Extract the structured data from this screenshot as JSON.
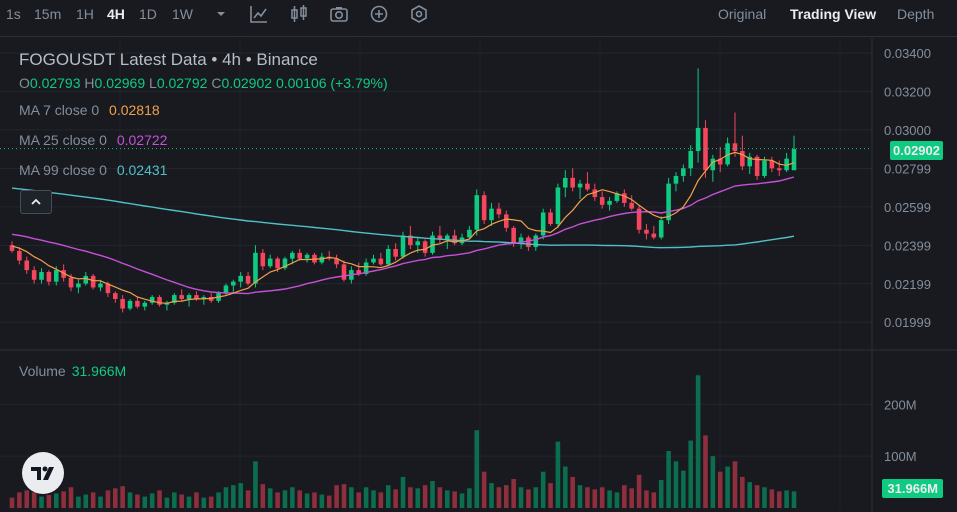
{
  "toolbar": {
    "timeframes": [
      "1s",
      "15m",
      "1H",
      "4H",
      "1D",
      "1W"
    ],
    "active_timeframe": "4H",
    "tool_icons": [
      "chevron-down-icon",
      "line-chart-icon",
      "candle-settings-icon",
      "camera-icon",
      "plus-circle-icon",
      "hexagon-settings-icon"
    ],
    "views": [
      "Original",
      "Trading View",
      "Depth"
    ],
    "active_view": "Trading View"
  },
  "legend": {
    "title": "FOGOUSDT Latest Data • 4h • Binance",
    "open_label": "O",
    "open": "0.02793",
    "high_label": "H",
    "high": "0.02969",
    "low_label": "L",
    "low": "0.02792",
    "close_label": "C",
    "close": "0.02902",
    "change": "0.00106 (+3.79%)",
    "ma7_label": "MA 7 close 0",
    "ma7_value": "0.02818",
    "ma25_label": "MA 25 close 0",
    "ma25_value": "0.02722",
    "ma99_label": "MA 99 close 0",
    "ma99_value": "0.02431"
  },
  "volume": {
    "label": "Volume",
    "value": "31.966M",
    "tag": "31.966M"
  },
  "price_tag": "0.02902",
  "colors": {
    "up": "#0ecb81",
    "down": "#f6465d",
    "ma7": "#f0a04b",
    "ma25": "#c650d6",
    "ma99": "#4fc1c6",
    "bg": "#181a20"
  },
  "chart_data": {
    "type": "candlestick",
    "price_axis_ticks": [
      "0.03400",
      "0.03200",
      "0.03000",
      "0.02799",
      "0.02599",
      "0.02399",
      "0.02199",
      "0.01999"
    ],
    "volume_axis_ticks": [
      "200M",
      "100M"
    ],
    "ylim": [
      0.019,
      0.0355
    ],
    "candles": [
      [
        0.024,
        0.0242,
        0.0236,
        0.0237,
        20
      ],
      [
        0.0237,
        0.0239,
        0.023,
        0.0232,
        30
      ],
      [
        0.0232,
        0.0234,
        0.0225,
        0.0227,
        34
      ],
      [
        0.0227,
        0.0229,
        0.022,
        0.0222,
        30
      ],
      [
        0.0222,
        0.0228,
        0.022,
        0.0226,
        22
      ],
      [
        0.0226,
        0.0227,
        0.0219,
        0.0221,
        25
      ],
      [
        0.0221,
        0.0229,
        0.0219,
        0.0227,
        28
      ],
      [
        0.0227,
        0.023,
        0.0221,
        0.0223,
        32
      ],
      [
        0.0223,
        0.0225,
        0.0216,
        0.0218,
        40
      ],
      [
        0.0218,
        0.0222,
        0.0215,
        0.022,
        22
      ],
      [
        0.022,
        0.0226,
        0.0219,
        0.0224,
        26
      ],
      [
        0.0224,
        0.0225,
        0.0217,
        0.0218,
        30
      ],
      [
        0.0218,
        0.0222,
        0.0216,
        0.022,
        22
      ],
      [
        0.022,
        0.0221,
        0.0213,
        0.0215,
        34
      ],
      [
        0.0215,
        0.0216,
        0.021,
        0.0212,
        38
      ],
      [
        0.0212,
        0.0214,
        0.0205,
        0.0207,
        42
      ],
      [
        0.0207,
        0.0212,
        0.0206,
        0.0211,
        30
      ],
      [
        0.0211,
        0.0213,
        0.0207,
        0.0208,
        26
      ],
      [
        0.0208,
        0.0211,
        0.0206,
        0.021,
        22
      ],
      [
        0.021,
        0.0214,
        0.0209,
        0.0213,
        28
      ],
      [
        0.0213,
        0.0214,
        0.0208,
        0.0209,
        34
      ],
      [
        0.0209,
        0.0211,
        0.0206,
        0.021,
        20
      ],
      [
        0.021,
        0.0215,
        0.0209,
        0.0214,
        30
      ],
      [
        0.0214,
        0.0217,
        0.0211,
        0.0212,
        26
      ],
      [
        0.0212,
        0.0215,
        0.0208,
        0.0214,
        22
      ],
      [
        0.0214,
        0.0216,
        0.0211,
        0.0212,
        30
      ],
      [
        0.0212,
        0.0214,
        0.0209,
        0.0213,
        20
      ],
      [
        0.0213,
        0.0215,
        0.021,
        0.0211,
        22
      ],
      [
        0.0211,
        0.0216,
        0.021,
        0.0215,
        30
      ],
      [
        0.0215,
        0.022,
        0.0214,
        0.0219,
        40
      ],
      [
        0.0219,
        0.0222,
        0.0215,
        0.0221,
        44
      ],
      [
        0.0221,
        0.0226,
        0.0218,
        0.0224,
        48
      ],
      [
        0.0224,
        0.0226,
        0.0219,
        0.022,
        34
      ],
      [
        0.022,
        0.024,
        0.0218,
        0.0236,
        90
      ],
      [
        0.0236,
        0.0238,
        0.0227,
        0.0229,
        46
      ],
      [
        0.0229,
        0.0235,
        0.0228,
        0.0233,
        38
      ],
      [
        0.0233,
        0.0234,
        0.0226,
        0.0228,
        30
      ],
      [
        0.0228,
        0.0234,
        0.0227,
        0.0233,
        34
      ],
      [
        0.0233,
        0.0237,
        0.023,
        0.0236,
        40
      ],
      [
        0.0236,
        0.0238,
        0.0232,
        0.0233,
        34
      ],
      [
        0.0233,
        0.0236,
        0.0231,
        0.0235,
        28
      ],
      [
        0.0235,
        0.0236,
        0.023,
        0.0231,
        30
      ],
      [
        0.0231,
        0.0236,
        0.023,
        0.0234,
        26
      ],
      [
        0.0234,
        0.0237,
        0.0232,
        0.0233,
        24
      ],
      [
        0.0233,
        0.0235,
        0.0228,
        0.023,
        44
      ],
      [
        0.023,
        0.0232,
        0.0221,
        0.0222,
        46
      ],
      [
        0.0222,
        0.0229,
        0.022,
        0.0227,
        40
      ],
      [
        0.0227,
        0.0231,
        0.0224,
        0.0225,
        30
      ],
      [
        0.0225,
        0.0233,
        0.0224,
        0.0231,
        40
      ],
      [
        0.0231,
        0.0235,
        0.023,
        0.0233,
        34
      ],
      [
        0.0233,
        0.0236,
        0.0229,
        0.023,
        30
      ],
      [
        0.023,
        0.024,
        0.0229,
        0.0238,
        44
      ],
      [
        0.0238,
        0.0241,
        0.0232,
        0.0234,
        36
      ],
      [
        0.0234,
        0.0247,
        0.0233,
        0.0245,
        60
      ],
      [
        0.0245,
        0.025,
        0.0238,
        0.024,
        40
      ],
      [
        0.024,
        0.0244,
        0.0236,
        0.0242,
        38
      ],
      [
        0.0242,
        0.0243,
        0.0234,
        0.0236,
        44
      ],
      [
        0.0236,
        0.0247,
        0.0235,
        0.0245,
        52
      ],
      [
        0.0245,
        0.025,
        0.0241,
        0.0243,
        40
      ],
      [
        0.0243,
        0.0246,
        0.0238,
        0.0245,
        34
      ],
      [
        0.0245,
        0.0248,
        0.024,
        0.0241,
        32
      ],
      [
        0.0241,
        0.0246,
        0.024,
        0.0244,
        28
      ],
      [
        0.0244,
        0.025,
        0.0243,
        0.0248,
        38
      ],
      [
        0.0248,
        0.0269,
        0.0245,
        0.0266,
        150
      ],
      [
        0.0266,
        0.0268,
        0.0251,
        0.0253,
        70
      ],
      [
        0.0253,
        0.0262,
        0.025,
        0.0259,
        48
      ],
      [
        0.0259,
        0.0262,
        0.0254,
        0.0256,
        40
      ],
      [
        0.0256,
        0.0258,
        0.0247,
        0.0249,
        44
      ],
      [
        0.0249,
        0.025,
        0.0239,
        0.0241,
        56
      ],
      [
        0.0241,
        0.0246,
        0.0238,
        0.0244,
        40
      ],
      [
        0.0244,
        0.0245,
        0.0237,
        0.0239,
        36
      ],
      [
        0.0239,
        0.0246,
        0.0237,
        0.0245,
        40
      ],
      [
        0.0245,
        0.0259,
        0.0243,
        0.0257,
        70
      ],
      [
        0.0257,
        0.0259,
        0.025,
        0.0251,
        48
      ],
      [
        0.0251,
        0.0272,
        0.0249,
        0.027,
        128
      ],
      [
        0.027,
        0.0279,
        0.0265,
        0.0275,
        80
      ],
      [
        0.0275,
        0.028,
        0.0268,
        0.027,
        60
      ],
      [
        0.027,
        0.0274,
        0.0264,
        0.0272,
        44
      ],
      [
        0.0272,
        0.0278,
        0.0268,
        0.0269,
        40
      ],
      [
        0.0269,
        0.0272,
        0.0263,
        0.0265,
        36
      ],
      [
        0.0265,
        0.0268,
        0.0259,
        0.0261,
        40
      ],
      [
        0.0261,
        0.0265,
        0.0258,
        0.0263,
        34
      ],
      [
        0.0263,
        0.0268,
        0.0262,
        0.0267,
        30
      ],
      [
        0.0267,
        0.0269,
        0.026,
        0.0262,
        44
      ],
      [
        0.0262,
        0.0266,
        0.0258,
        0.0259,
        38
      ],
      [
        0.0259,
        0.0261,
        0.0246,
        0.0248,
        64
      ],
      [
        0.0248,
        0.0251,
        0.0243,
        0.0246,
        34
      ],
      [
        0.0246,
        0.025,
        0.0243,
        0.0244,
        30
      ],
      [
        0.0244,
        0.0255,
        0.0243,
        0.0253,
        54
      ],
      [
        0.0253,
        0.0275,
        0.0251,
        0.0272,
        110
      ],
      [
        0.0272,
        0.0278,
        0.0268,
        0.0276,
        90
      ],
      [
        0.0276,
        0.0282,
        0.0273,
        0.028,
        72
      ],
      [
        0.028,
        0.0292,
        0.0276,
        0.0289,
        130
      ],
      [
        0.0289,
        0.0332,
        0.0283,
        0.0301,
        256
      ],
      [
        0.0301,
        0.0305,
        0.0275,
        0.0279,
        140
      ],
      [
        0.0279,
        0.0287,
        0.0273,
        0.0285,
        100
      ],
      [
        0.0285,
        0.0291,
        0.0278,
        0.0282,
        70
      ],
      [
        0.0282,
        0.0296,
        0.0281,
        0.0293,
        80
      ],
      [
        0.0293,
        0.0309,
        0.0286,
        0.0289,
        90
      ],
      [
        0.0289,
        0.0297,
        0.0279,
        0.0281,
        60
      ],
      [
        0.0281,
        0.0288,
        0.0277,
        0.0286,
        50
      ],
      [
        0.0286,
        0.0287,
        0.0274,
        0.0276,
        44
      ],
      [
        0.0276,
        0.0286,
        0.0275,
        0.0284,
        40
      ],
      [
        0.0284,
        0.0286,
        0.0278,
        0.028,
        36
      ],
      [
        0.028,
        0.0284,
        0.0276,
        0.0279,
        32
      ],
      [
        0.0279,
        0.0288,
        0.0278,
        0.0285,
        34
      ],
      [
        0.0279,
        0.0297,
        0.0279,
        0.029,
        32
      ]
    ]
  }
}
